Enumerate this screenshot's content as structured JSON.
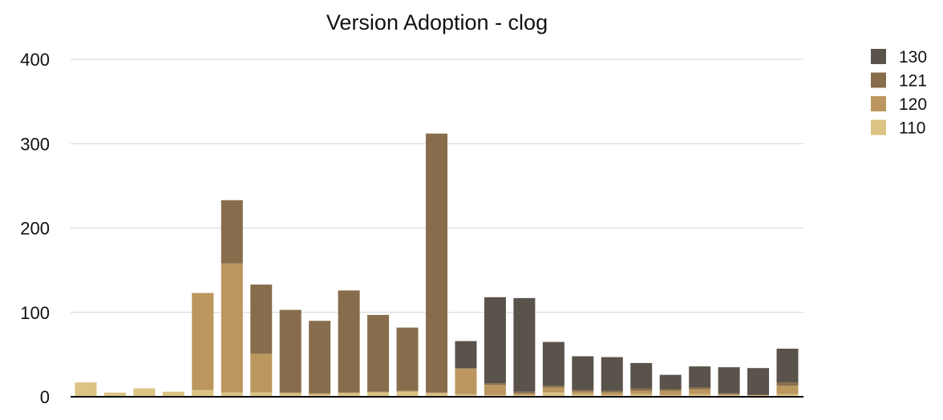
{
  "chart_data": {
    "type": "bar",
    "stacked": true,
    "title": "Version Adoption - clog",
    "xlabel": "",
    "ylabel": "",
    "ylim": [
      0,
      400
    ],
    "yticks": [
      0,
      100,
      200,
      300,
      400
    ],
    "grid": true,
    "legend_position": "top-right",
    "categories": [
      "",
      "",
      "",
      "",
      "",
      "",
      "",
      "",
      "",
      "",
      "",
      "",
      "",
      "",
      "",
      "",
      "",
      "",
      "",
      "",
      "",
      "",
      "",
      "",
      ""
    ],
    "series": [
      {
        "name": "110",
        "color": "#dcc384",
        "values": [
          17,
          5,
          10,
          6,
          8,
          5,
          5,
          4,
          3,
          4,
          5,
          6,
          4,
          3,
          2,
          2,
          5,
          3,
          2,
          3,
          2,
          3,
          2,
          2,
          3
        ]
      },
      {
        "name": "120",
        "color": "#bb975f",
        "values": [
          0,
          0,
          0,
          0,
          115,
          153,
          46,
          1,
          1,
          1,
          1,
          1,
          1,
          30,
          12,
          2,
          6,
          3,
          3,
          4,
          5,
          6,
          1,
          0,
          10
        ]
      },
      {
        "name": "121",
        "color": "#876d4b",
        "values": [
          0,
          0,
          0,
          0,
          0,
          75,
          82,
          98,
          86,
          121,
          91,
          75,
          307,
          1,
          2,
          2,
          2,
          2,
          2,
          3,
          2,
          2,
          1,
          0,
          4
        ]
      },
      {
        "name": "130",
        "color": "#5a534b",
        "values": [
          0,
          0,
          0,
          0,
          0,
          0,
          0,
          0,
          0,
          0,
          0,
          0,
          0,
          32,
          102,
          111,
          52,
          40,
          40,
          30,
          17,
          25,
          31,
          32,
          40
        ]
      }
    ]
  }
}
